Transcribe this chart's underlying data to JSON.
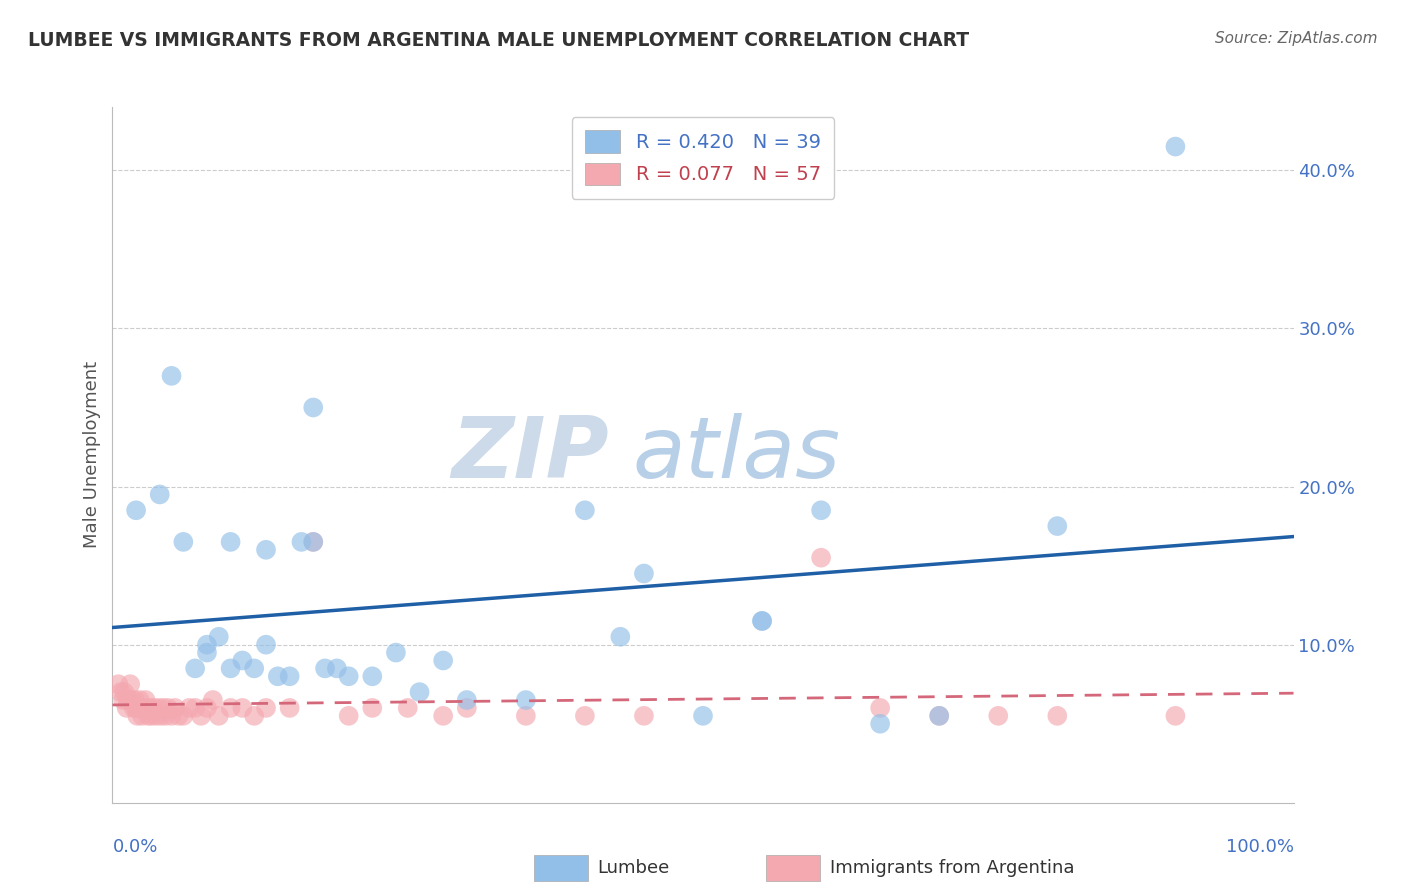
{
  "title": "LUMBEE VS IMMIGRANTS FROM ARGENTINA MALE UNEMPLOYMENT CORRELATION CHART",
  "source": "Source: ZipAtlas.com",
  "ylabel": "Male Unemployment",
  "lumbee_R": 0.42,
  "lumbee_N": 39,
  "argentina_R": 0.077,
  "argentina_N": 57,
  "lumbee_color": "#92bfe8",
  "argentina_color": "#f4a8b0",
  "lumbee_line_color": "#1f5fa6",
  "argentina_line_color": "#d4687a",
  "watermark_color": "#dce9f5",
  "lumbee_x": [
    0.02,
    0.04,
    0.05,
    0.06,
    0.07,
    0.08,
    0.09,
    0.1,
    0.1,
    0.11,
    0.12,
    0.13,
    0.14,
    0.15,
    0.16,
    0.17,
    0.18,
    0.19,
    0.2,
    0.22,
    0.24,
    0.26,
    0.28,
    0.3,
    0.35,
    0.4,
    0.43,
    0.45,
    0.5,
    0.55,
    0.6,
    0.65,
    0.7,
    0.8,
    0.9,
    0.17,
    0.08,
    0.13,
    0.55
  ],
  "lumbee_y": [
    0.185,
    0.195,
    0.27,
    0.165,
    0.085,
    0.095,
    0.105,
    0.085,
    0.165,
    0.09,
    0.085,
    0.1,
    0.08,
    0.08,
    0.165,
    0.165,
    0.085,
    0.085,
    0.08,
    0.08,
    0.095,
    0.07,
    0.09,
    0.065,
    0.065,
    0.185,
    0.105,
    0.145,
    0.055,
    0.115,
    0.185,
    0.05,
    0.055,
    0.175,
    0.415,
    0.25,
    0.1,
    0.16,
    0.115
  ],
  "argentina_x": [
    0.005,
    0.007,
    0.009,
    0.01,
    0.012,
    0.013,
    0.015,
    0.016,
    0.018,
    0.019,
    0.02,
    0.021,
    0.022,
    0.023,
    0.025,
    0.026,
    0.028,
    0.03,
    0.031,
    0.033,
    0.035,
    0.037,
    0.039,
    0.041,
    0.043,
    0.045,
    0.047,
    0.05,
    0.053,
    0.056,
    0.06,
    0.065,
    0.07,
    0.075,
    0.08,
    0.085,
    0.09,
    0.1,
    0.11,
    0.12,
    0.13,
    0.15,
    0.17,
    0.2,
    0.22,
    0.25,
    0.28,
    0.3,
    0.35,
    0.4,
    0.45,
    0.6,
    0.65,
    0.7,
    0.75,
    0.8,
    0.9
  ],
  "argentina_y": [
    0.075,
    0.07,
    0.065,
    0.07,
    0.06,
    0.065,
    0.075,
    0.065,
    0.06,
    0.065,
    0.06,
    0.055,
    0.06,
    0.065,
    0.055,
    0.06,
    0.065,
    0.055,
    0.06,
    0.055,
    0.06,
    0.055,
    0.06,
    0.055,
    0.06,
    0.055,
    0.06,
    0.055,
    0.06,
    0.055,
    0.055,
    0.06,
    0.06,
    0.055,
    0.06,
    0.065,
    0.055,
    0.06,
    0.06,
    0.055,
    0.06,
    0.06,
    0.165,
    0.055,
    0.06,
    0.06,
    0.055,
    0.06,
    0.055,
    0.055,
    0.055,
    0.155,
    0.06,
    0.055,
    0.055,
    0.055,
    0.055
  ],
  "lumbee_trend": [
    0.0,
    1.0
  ],
  "argentina_trend": [
    0.0,
    1.0
  ],
  "xlim": [
    0.0,
    1.0
  ],
  "ylim": [
    0.0,
    0.44
  ],
  "yticks": [
    0.1,
    0.2,
    0.3,
    0.4
  ],
  "ytick_labels": [
    "10.0%",
    "20.0%",
    "30.0%",
    "40.0%"
  ]
}
